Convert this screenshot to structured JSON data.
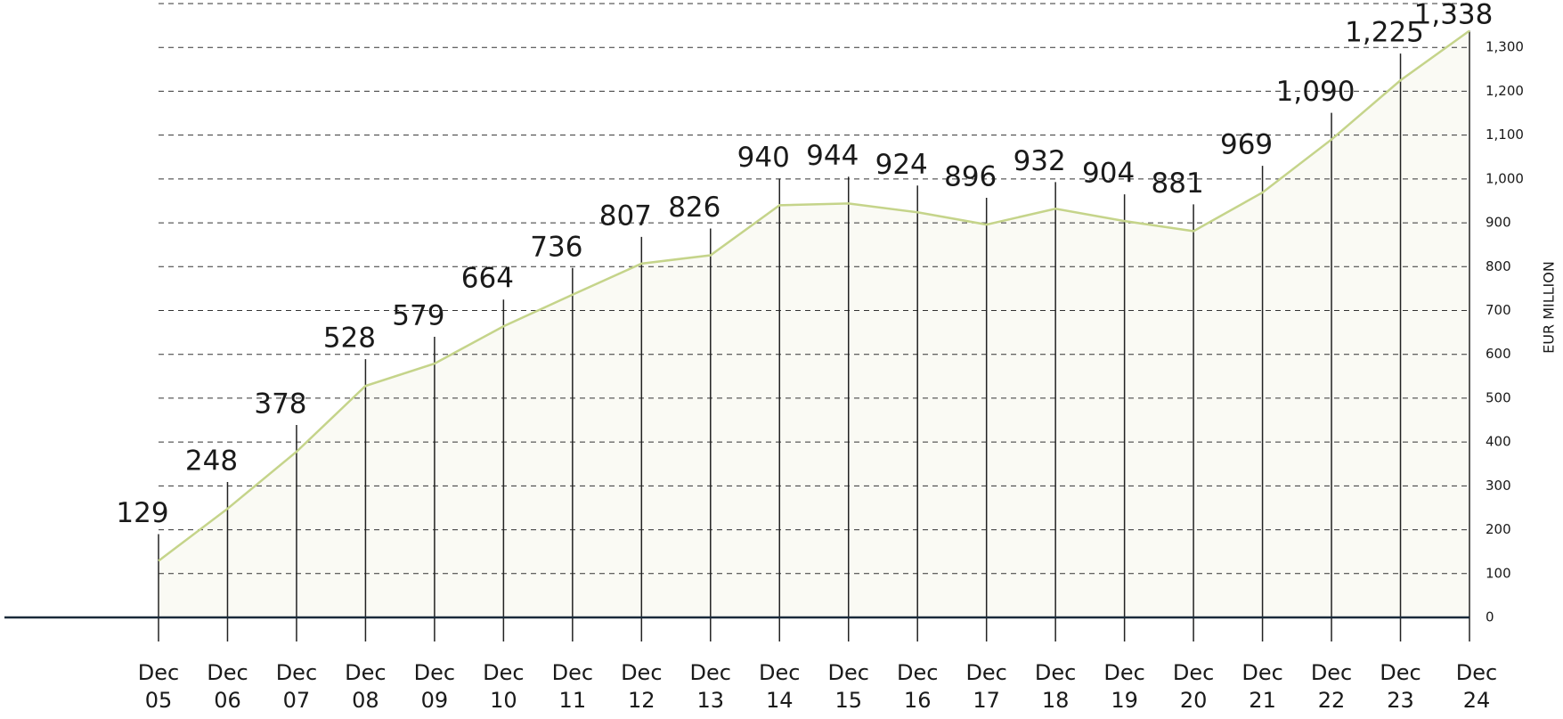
{
  "chart_data": {
    "type": "line",
    "axis_title": "EUR MILLION",
    "categories": [
      "Dec 05",
      "Dec 06",
      "Dec 07",
      "Dec 08",
      "Dec 09",
      "Dec 10",
      "Dec 11",
      "Dec 12",
      "Dec 13",
      "Dec 14",
      "Dec 15",
      "Dec 16",
      "Dec 17",
      "Dec 18",
      "Dec 19",
      "Dec 20",
      "Dec 21",
      "Dec 22",
      "Dec 23",
      "Dec 24"
    ],
    "values": [
      129,
      248,
      378,
      528,
      579,
      664,
      736,
      807,
      826,
      940,
      944,
      924,
      896,
      932,
      904,
      881,
      969,
      1090,
      1225,
      1338
    ],
    "value_labels": [
      "129",
      "248",
      "378",
      "528",
      "579",
      "664",
      "736",
      "807",
      "826",
      "940",
      "944",
      "924",
      "896",
      "932",
      "904",
      "881",
      "969",
      "1,090",
      "1,225",
      "1,338"
    ],
    "color": "#c5d48a",
    "ylim": [
      0,
      1400
    ],
    "yticks": [
      0,
      100,
      200,
      300,
      400,
      500,
      600,
      700,
      800,
      900,
      {
        "value": 1000,
        "label": "1,000"
      },
      {
        "value": 1100,
        "label": "1,100"
      },
      {
        "value": 1200,
        "label": "1,200"
      },
      {
        "value": 1300,
        "label": "1,300"
      }
    ],
    "grid": true,
    "y_axis_side": "right"
  }
}
